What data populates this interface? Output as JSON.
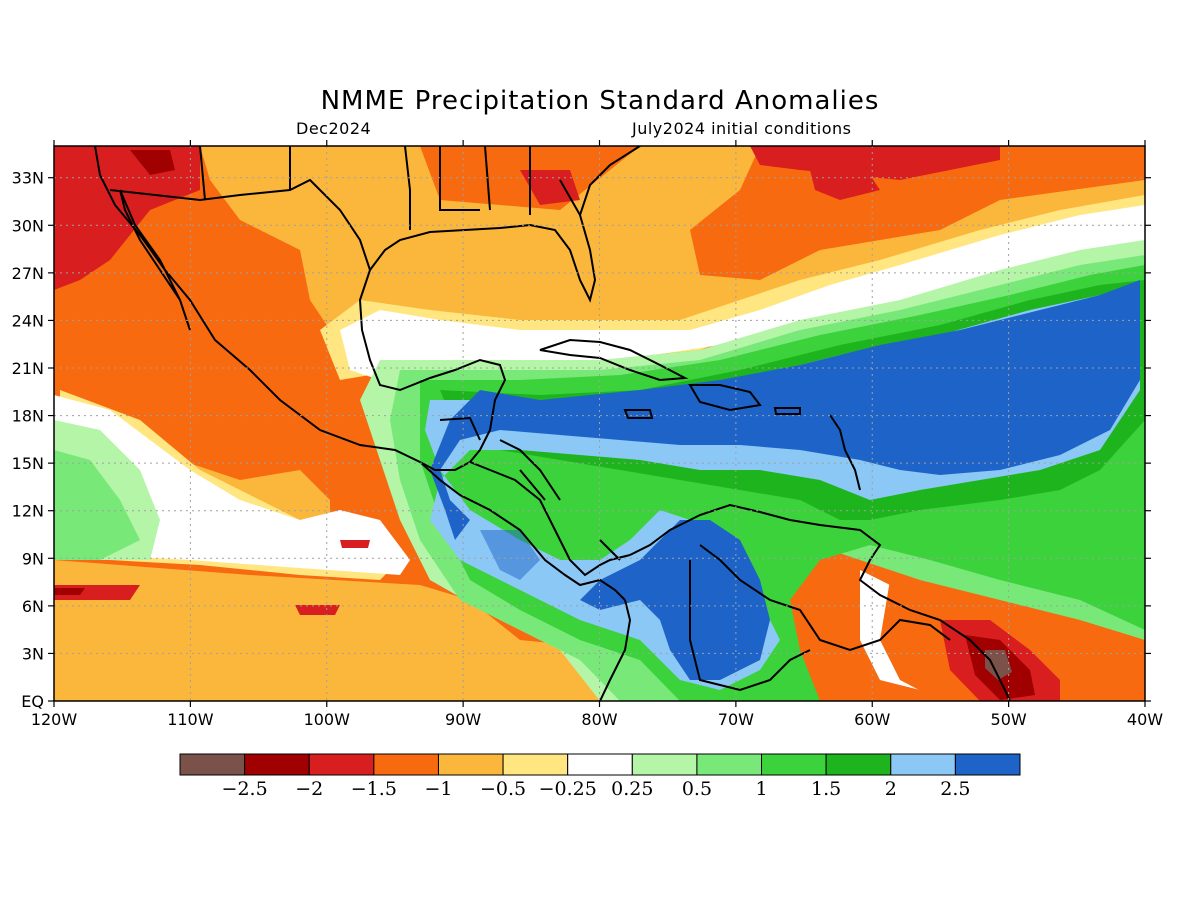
{
  "title": "NMME Precipitation Standard Anomalies",
  "subtitle_left": "Dec2024",
  "subtitle_right": "July2024 initial conditions",
  "map": {
    "lon_range": [
      -120,
      -40
    ],
    "lat_range": [
      0,
      35
    ],
    "lat_ticks": [
      {
        "value": 33,
        "label": "33N"
      },
      {
        "value": 30,
        "label": "30N"
      },
      {
        "value": 27,
        "label": "27N"
      },
      {
        "value": 24,
        "label": "24N"
      },
      {
        "value": 21,
        "label": "21N"
      },
      {
        "value": 18,
        "label": "18N"
      },
      {
        "value": 15,
        "label": "15N"
      },
      {
        "value": 12,
        "label": "12N"
      },
      {
        "value": 9,
        "label": "9N"
      },
      {
        "value": 6,
        "label": "6N"
      },
      {
        "value": 3,
        "label": "3N"
      },
      {
        "value": 0,
        "label": "EQ"
      }
    ],
    "lon_ticks": [
      {
        "value": -120,
        "label": "120W"
      },
      {
        "value": -110,
        "label": "110W"
      },
      {
        "value": -100,
        "label": "100W"
      },
      {
        "value": -90,
        "label": "90W"
      },
      {
        "value": -80,
        "label": "80W"
      },
      {
        "value": -70,
        "label": "70W"
      },
      {
        "value": -60,
        "label": "60W"
      },
      {
        "value": -50,
        "label": "50W"
      },
      {
        "value": -40,
        "label": "40W"
      }
    ],
    "grid": "dotted"
  },
  "colorbar": {
    "colors": [
      "#7a524a",
      "#a00000",
      "#d81e1e",
      "#f76a10",
      "#fbb73c",
      "#ffe680",
      "#ffffff",
      "#b4f5a8",
      "#78e878",
      "#3cd23c",
      "#1eb41e",
      "#8cc8f5",
      "#1e64c8"
    ],
    "labels": [
      "-2.5",
      "-2",
      "-1.5",
      "-1",
      "-0.5",
      "-0.25",
      "0.25",
      "0.5",
      "1",
      "1.5",
      "2",
      "2.5"
    ]
  }
}
